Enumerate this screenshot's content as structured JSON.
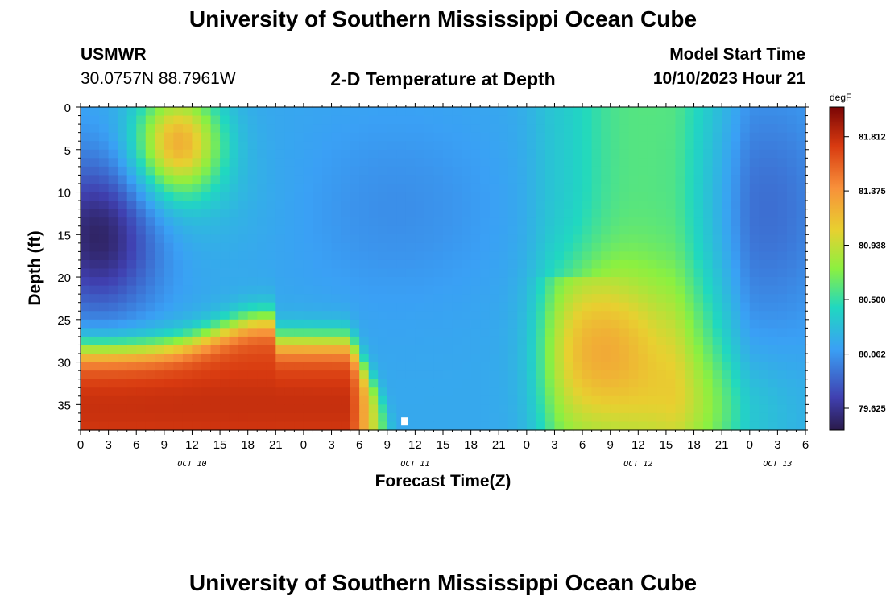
{
  "header": {
    "title": "University of Southern Mississippi Ocean Cube",
    "station": "USMWR",
    "coords": "30.0757N  88.7961W",
    "subtitle": "2-D Temperature at Depth",
    "model_label": "Model Start Time",
    "model_time": "10/10/2023 Hour 21"
  },
  "footer": {
    "title": "University of Southern Mississippi Ocean Cube"
  },
  "chart_data": {
    "type": "heatmap",
    "title": "2-D Temperature at Depth",
    "xlabel": "Forecast Time(Z)",
    "ylabel": "Depth (ft)",
    "ylim": [
      0,
      38
    ],
    "y_ticks": [
      0,
      5,
      10,
      15,
      20,
      25,
      30,
      35
    ],
    "x_ticks": [
      "0",
      "3",
      "6",
      "9",
      "12",
      "15",
      "18",
      "21",
      "0",
      "3",
      "6",
      "9",
      "12",
      "15",
      "18",
      "21",
      "0",
      "3",
      "6",
      "9",
      "12",
      "15",
      "18",
      "21",
      "0",
      "3",
      "6"
    ],
    "x_range_hours": [
      0,
      78
    ],
    "date_labels": [
      {
        "label": "OCT 10",
        "hour": 12
      },
      {
        "label": "OCT 11",
        "hour": 36
      },
      {
        "label": "OCT 12",
        "hour": 60
      },
      {
        "label": "OCT 13",
        "hour": 75
      }
    ],
    "colorbar": {
      "unit": "degF",
      "ticks": [
        "81.812",
        "81.375",
        "80.938",
        "80.500",
        "80.062",
        "79.625"
      ],
      "range": [
        79.45,
        82.05
      ]
    },
    "grid": false
  }
}
